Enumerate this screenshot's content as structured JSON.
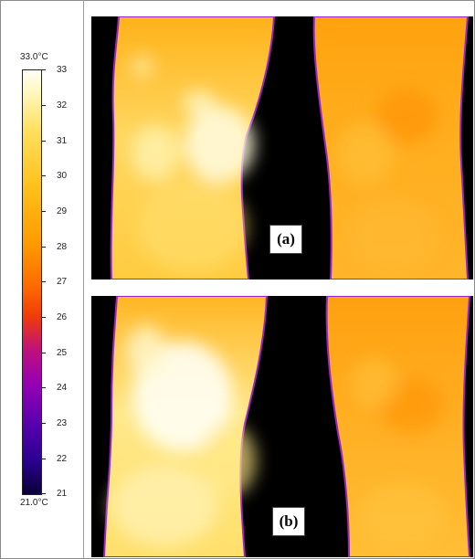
{
  "color_scale": {
    "max_label": "33.0°C",
    "min_label": "21.0°C",
    "ticks": [
      "33",
      "32",
      "31",
      "30",
      "29",
      "28",
      "27",
      "26",
      "25",
      "24",
      "23",
      "22",
      "21"
    ]
  },
  "panels": [
    {
      "label": "(a)"
    },
    {
      "label": "(b)"
    }
  ]
}
